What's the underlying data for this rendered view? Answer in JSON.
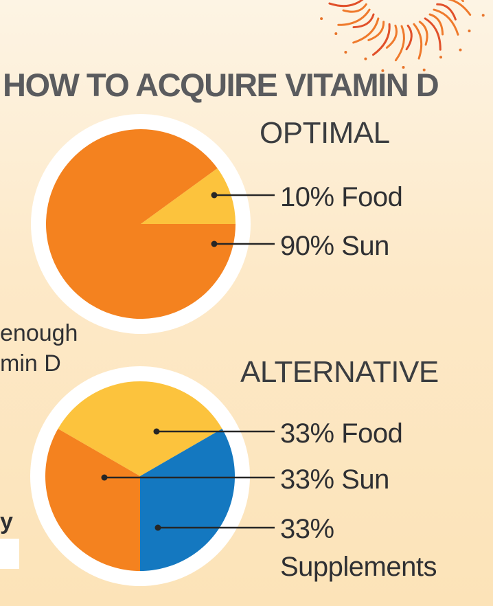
{
  "colors": {
    "sun": "#f4821f",
    "food": "#fcc33d",
    "supplements": "#1478c0",
    "ring": "#ffffff",
    "leader": "#262626"
  },
  "icons": [
    "sun-icon"
  ],
  "chart_data": {
    "title": "HOW TO ACQUIRE VITAMIN D",
    "side_text": [
      "enough",
      "min D",
      "y"
    ],
    "charts": [
      {
        "type": "pie",
        "title": "OPTIMAL",
        "slices": [
          {
            "label": "10% Food",
            "value": 10
          },
          {
            "label": "90% Sun",
            "value": 90
          }
        ]
      },
      {
        "type": "pie",
        "title": "ALTERNATIVE",
        "slices": [
          {
            "label": "33% Food",
            "value": 33
          },
          {
            "label": "33% Sun",
            "value": 33
          },
          {
            "label": "33%",
            "label_line2": "Supplements",
            "value": 33
          }
        ]
      }
    ]
  }
}
